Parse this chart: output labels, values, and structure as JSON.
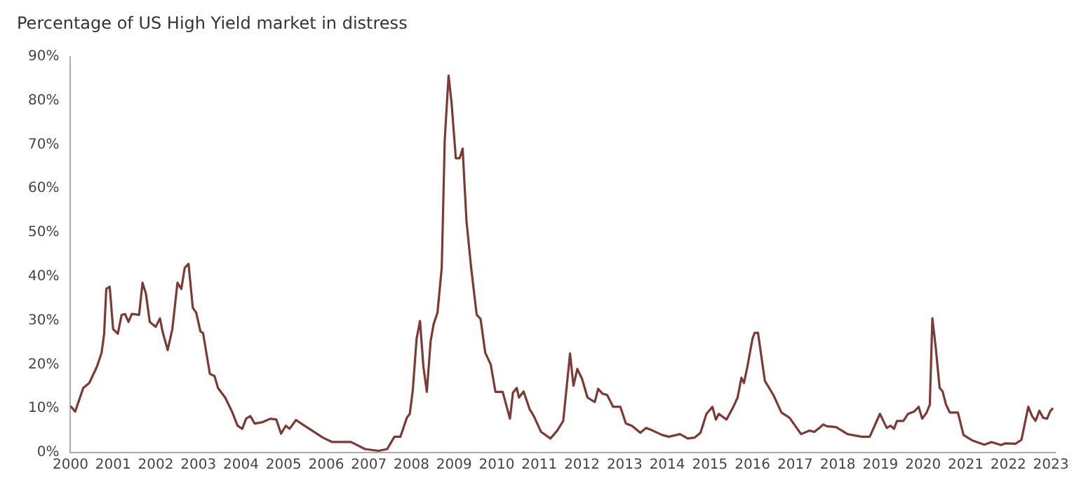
{
  "chart_data": {
    "type": "line",
    "title": "Percentage of US High Yield market in distress",
    "x": [
      2000.0,
      2000.11,
      2000.3,
      2000.44,
      2000.62,
      2000.73,
      2000.79,
      2000.84,
      2000.92,
      2001.0,
      2001.11,
      2001.2,
      2001.28,
      2001.36,
      2001.44,
      2001.61,
      2001.69,
      2001.77,
      2001.86,
      2002.0,
      2002.1,
      2002.16,
      2002.28,
      2002.39,
      2002.51,
      2002.6,
      2002.68,
      2002.77,
      2002.87,
      2002.95,
      2003.05,
      2003.11,
      2003.27,
      2003.38,
      2003.46,
      2003.63,
      2003.79,
      2003.92,
      2004.03,
      2004.12,
      2004.22,
      2004.32,
      2004.5,
      2004.69,
      2004.83,
      2004.94,
      2005.05,
      2005.14,
      2005.29,
      2005.49,
      2005.7,
      2005.92,
      2006.14,
      2006.58,
      2006.91,
      2007.23,
      2007.43,
      2007.6,
      2007.74,
      2007.89,
      2007.96,
      2008.03,
      2008.12,
      2008.2,
      2008.28,
      2008.36,
      2008.45,
      2008.52,
      2008.61,
      2008.71,
      2008.78,
      2008.87,
      2008.94,
      2009.04,
      2009.13,
      2009.2,
      2009.29,
      2009.4,
      2009.53,
      2009.62,
      2009.73,
      2009.86,
      2009.97,
      2010.14,
      2010.31,
      2010.38,
      2010.47,
      2010.52,
      2010.63,
      2010.77,
      2010.87,
      2011.04,
      2011.26,
      2011.42,
      2011.56,
      2011.72,
      2011.8,
      2011.89,
      2012.0,
      2012.13,
      2012.3,
      2012.38,
      2012.48,
      2012.59,
      2012.73,
      2012.9,
      2013.03,
      2013.17,
      2013.37,
      2013.5,
      2013.66,
      2013.88,
      2014.04,
      2014.3,
      2014.48,
      2014.64,
      2014.78,
      2014.92,
      2015.06,
      2015.14,
      2015.21,
      2015.39,
      2015.55,
      2015.65,
      2015.74,
      2015.8,
      2015.88,
      2016.0,
      2016.05,
      2016.13,
      2016.29,
      2016.49,
      2016.68,
      2016.87,
      2017.14,
      2017.34,
      2017.45,
      2017.57,
      2017.66,
      2017.74,
      2017.96,
      2018.23,
      2018.56,
      2018.75,
      2018.99,
      2019.15,
      2019.24,
      2019.32,
      2019.39,
      2019.54,
      2019.65,
      2019.79,
      2019.9,
      2019.98,
      2020.08,
      2020.16,
      2020.22,
      2020.3,
      2020.39,
      2020.46,
      2020.54,
      2020.63,
      2020.82,
      2020.95,
      2021.17,
      2021.44,
      2021.61,
      2021.83,
      2021.93,
      2022.17,
      2022.31,
      2022.47,
      2022.56,
      2022.64,
      2022.73,
      2022.82,
      2022.91,
      2022.99,
      2023.05
    ],
    "values": [
      10.6,
      9.3,
      14.7,
      15.8,
      19.5,
      22.7,
      27,
      37.2,
      37.7,
      28.1,
      27,
      31.3,
      31.5,
      29.7,
      31.5,
      31.3,
      38.6,
      36.1,
      29.7,
      28.6,
      30.5,
      27.5,
      23.3,
      28.1,
      38.6,
      37.2,
      42,
      42.9,
      32.9,
      31.8,
      27.5,
      27.2,
      17.9,
      17.4,
      14.7,
      12.5,
      9.3,
      6.1,
      5.4,
      7.7,
      8.3,
      6.6,
      6.9,
      7.7,
      7.5,
      4.3,
      6.1,
      5.4,
      7.4,
      6.1,
      4.8,
      3.4,
      2.4,
      2.4,
      0.8,
      0.4,
      0.8,
      3.6,
      3.6,
      7.9,
      8.8,
      14.1,
      25.9,
      29.9,
      19.5,
      13.8,
      25.4,
      29.2,
      31.8,
      42,
      71,
      85.7,
      79.5,
      66.9,
      66.9,
      69.1,
      52.7,
      42,
      31.3,
      30.4,
      22.7,
      20,
      13.8,
      13.8,
      7.7,
      13.6,
      14.7,
      12.5,
      13.9,
      9.9,
      8.3,
      4.7,
      3.2,
      5,
      7.2,
      22.5,
      15.2,
      19,
      16.8,
      12.5,
      11.5,
      14.5,
      13.4,
      13.1,
      10.4,
      10.4,
      6.6,
      6.1,
      4.5,
      5.6,
      5,
      4,
      3.6,
      4.2,
      3.2,
      3.4,
      4.5,
      8.8,
      10.4,
      7.5,
      8.8,
      7.5,
      10.4,
      12.5,
      17,
      15.8,
      19.5,
      25.9,
      27.2,
      27.2,
      16.3,
      13.1,
      9.1,
      7.9,
      4.2,
      5,
      4.7,
      5.6,
      6.4,
      6,
      5.8,
      4.2,
      3.6,
      3.6,
      8.8,
      5.6,
      6.1,
      5.4,
      7.2,
      7.2,
      8.8,
      9.3,
      10.4,
      7.7,
      9,
      10.9,
      30.5,
      23.8,
      14.7,
      13.9,
      10.9,
      9.1,
      9.1,
      4,
      2.7,
      1.8,
      2.4,
      1.7,
      2.1,
      2,
      2.9,
      10.4,
      8.3,
      7.2,
      9.5,
      7.9,
      7.7,
      9.5,
      10.1
    ],
    "color": "#7b3a34",
    "xlim": [
      2000,
      2023.1
    ],
    "xticks": [
      2000,
      2001,
      2002,
      2003,
      2004,
      2005,
      2006,
      2007,
      2008,
      2009,
      2010,
      2011,
      2012,
      2013,
      2014,
      2015,
      2016,
      2017,
      2018,
      2019,
      2020,
      2021,
      2022,
      2023
    ],
    "ylim": [
      0,
      90
    ],
    "yticks": [
      {
        "value": 0,
        "label": "0%"
      },
      {
        "value": 10,
        "label": "10%"
      },
      {
        "value": 20,
        "label": "20%"
      },
      {
        "value": 30,
        "label": "30%"
      },
      {
        "value": 40,
        "label": "40%"
      },
      {
        "value": 50,
        "label": "50%"
      },
      {
        "value": 60,
        "label": "60%"
      },
      {
        "value": 70,
        "label": "70%"
      },
      {
        "value": 80,
        "label": "80%"
      },
      {
        "value": 90,
        "label": "90%"
      }
    ],
    "grid": false,
    "legend": false,
    "marker": "none",
    "line_style": "solid"
  }
}
